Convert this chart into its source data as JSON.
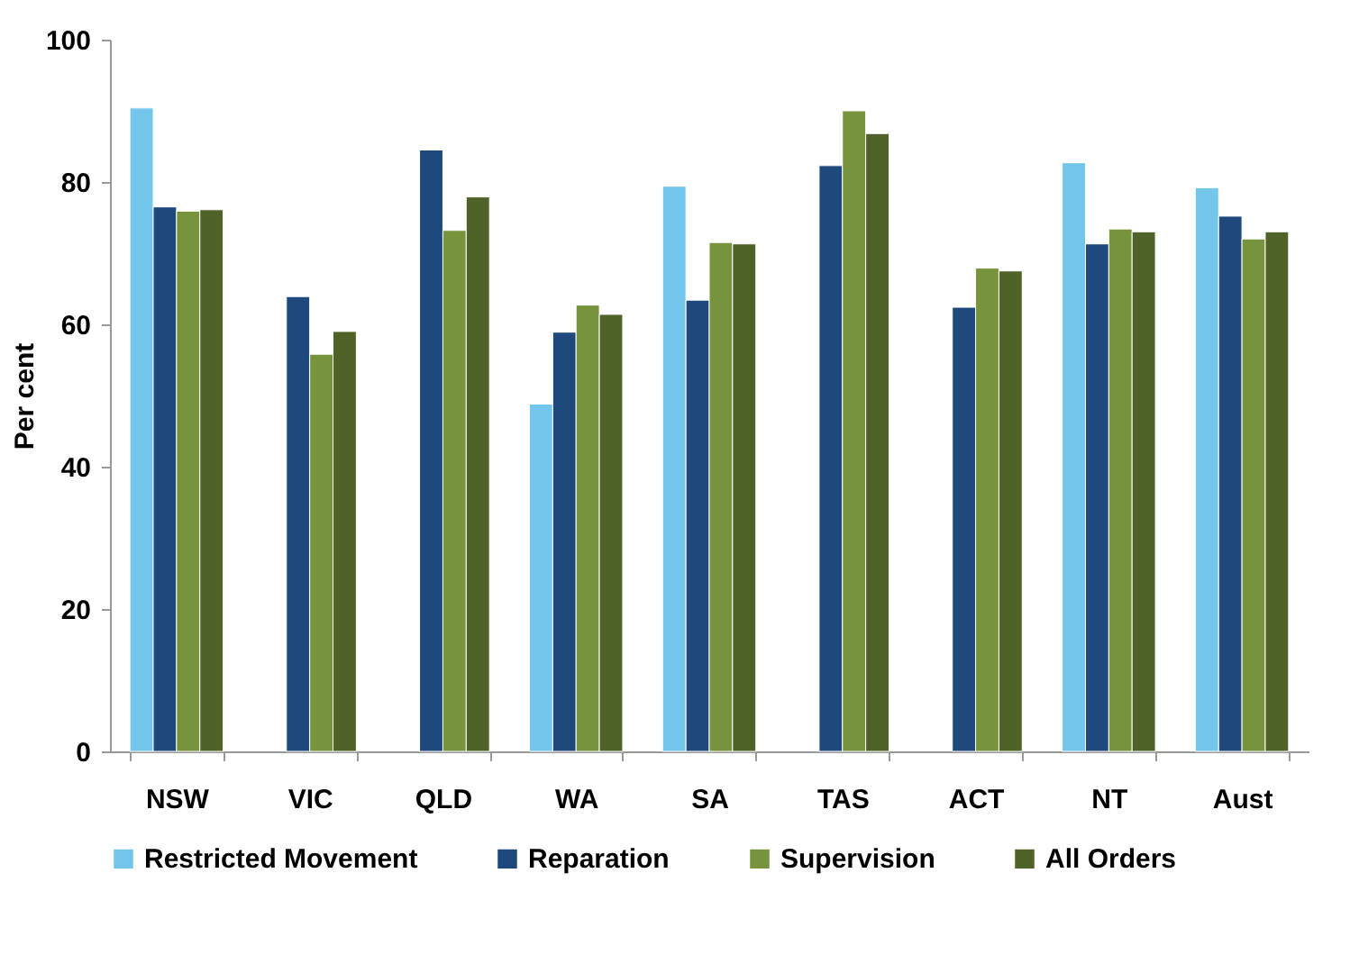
{
  "chart_data": {
    "type": "bar",
    "ylabel": "Per cent",
    "categories": [
      "NSW",
      "VIC",
      "QLD",
      "WA",
      "SA",
      "TAS",
      "ACT",
      "NT",
      "Aust"
    ],
    "series": [
      {
        "name": "Restricted Movement",
        "color": "#73c5ec",
        "values": [
          90.4,
          null,
          null,
          48.8,
          79.4,
          null,
          null,
          82.7,
          79.2
        ]
      },
      {
        "name": "Reparation",
        "color": "#1f497d",
        "values": [
          76.5,
          63.9,
          84.5,
          58.9,
          63.4,
          82.3,
          62.4,
          71.3,
          75.2
        ]
      },
      {
        "name": "Supervision",
        "color": "#77933c",
        "values": [
          75.9,
          55.8,
          73.2,
          62.7,
          71.5,
          90.0,
          67.9,
          73.4,
          72.0
        ]
      },
      {
        "name": "All Orders",
        "color": "#4f6228",
        "values": [
          76.1,
          59.0,
          77.9,
          61.4,
          71.3,
          86.8,
          67.5,
          73.0,
          73.0
        ]
      }
    ],
    "ylim": [
      0,
      100
    ],
    "yticks": [
      0,
      20,
      40,
      60,
      80,
      100
    ],
    "grid": false,
    "legend": "bottom"
  }
}
